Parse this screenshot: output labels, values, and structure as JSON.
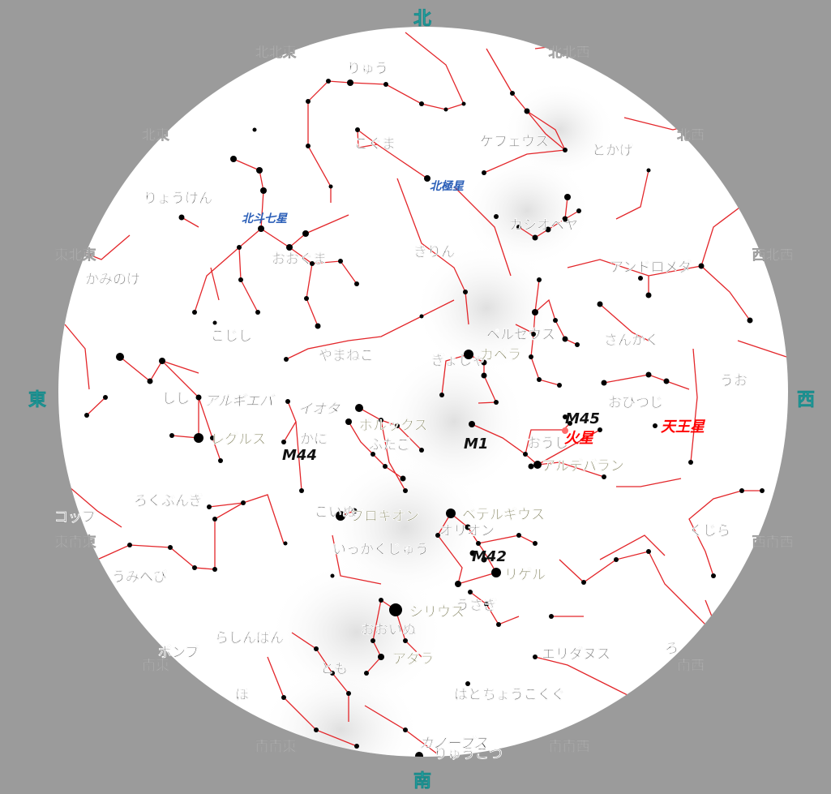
{
  "directions": {
    "main": [
      {
        "key": "north",
        "label": "北"
      },
      {
        "key": "east",
        "label": "東"
      },
      {
        "key": "west",
        "label": "西"
      },
      {
        "key": "south",
        "label": "南"
      }
    ],
    "minor": [
      {
        "key": "nne",
        "label": "北北東"
      },
      {
        "key": "nnw",
        "label": "北北西"
      },
      {
        "key": "ne",
        "label": "北東"
      },
      {
        "key": "nw",
        "label": "北西"
      },
      {
        "key": "ene",
        "label": "東北東"
      },
      {
        "key": "wnw",
        "label": "西北西"
      },
      {
        "key": "ese",
        "label": "東南東"
      },
      {
        "key": "wsw",
        "label": "西南西"
      },
      {
        "key": "se",
        "label": "南東"
      },
      {
        "key": "sw",
        "label": "南西"
      },
      {
        "key": "sse",
        "label": "南南東"
      },
      {
        "key": "ssw",
        "label": "南南西"
      }
    ]
  },
  "constellations": [
    {
      "key": "draco",
      "label": "りゅう"
    },
    {
      "key": "ursa-minor",
      "label": "こぐま"
    },
    {
      "key": "cepheus",
      "label": "ケフェウス"
    },
    {
      "key": "lacerta",
      "label": "とかげ"
    },
    {
      "key": "canes-venatici",
      "label": "りょうけん"
    },
    {
      "key": "ursa-major",
      "label": "おおぐま"
    },
    {
      "key": "camelopardalis",
      "label": "きりん"
    },
    {
      "key": "cassiopeia",
      "label": "カシオペヤ"
    },
    {
      "key": "andromeda",
      "label": "アンドロメダ"
    },
    {
      "key": "coma-berenices",
      "label": "かみのけ"
    },
    {
      "key": "leo-minor",
      "label": "こじし"
    },
    {
      "key": "lynx",
      "label": "やまねこ"
    },
    {
      "key": "auriga",
      "label": "ぎょしゃ"
    },
    {
      "key": "perseus",
      "label": "ペルセウス"
    },
    {
      "key": "triangulum",
      "label": "さんかく"
    },
    {
      "key": "pisces",
      "label": "うお"
    },
    {
      "key": "leo",
      "label": "しし"
    },
    {
      "key": "aries",
      "label": "おひつじ"
    },
    {
      "key": "cancer",
      "label": "かに"
    },
    {
      "key": "gemini",
      "label": "ふたご"
    },
    {
      "key": "taurus",
      "label": "おうし"
    },
    {
      "key": "sextans",
      "label": "ろくぶんぎ"
    },
    {
      "key": "crater",
      "label": "コップ"
    },
    {
      "key": "canis-minor",
      "label": "こいぬ"
    },
    {
      "key": "orion",
      "label": "オリオン"
    },
    {
      "key": "cetus",
      "label": "くじら"
    },
    {
      "key": "monoceros",
      "label": "いっかくじゅう"
    },
    {
      "key": "hydra",
      "label": "うみへび"
    },
    {
      "key": "lepus",
      "label": "うさぎ"
    },
    {
      "key": "pyxis",
      "label": "らしんばん"
    },
    {
      "key": "canis-major",
      "label": "おおいぬ"
    },
    {
      "key": "eridanus",
      "label": "エリダヌス"
    },
    {
      "key": "antlia",
      "label": "ポンプ"
    },
    {
      "key": "puppis",
      "label": "とも"
    },
    {
      "key": "caelum",
      "label": "ちょうこくぐ"
    },
    {
      "key": "columba",
      "label": "はと"
    },
    {
      "key": "vela",
      "label": "ほ"
    },
    {
      "key": "fornax",
      "label": "ろ"
    },
    {
      "key": "carina",
      "label": "りゅうこつ"
    }
  ],
  "stars": [
    {
      "key": "capella",
      "label": "カペラ"
    },
    {
      "key": "algieba",
      "label": "アルギエバ"
    },
    {
      "key": "iota",
      "label": "イオタ"
    },
    {
      "key": "pollux",
      "label": "ポルックス"
    },
    {
      "key": "regulus",
      "label": "レグルス"
    },
    {
      "key": "aldebaran",
      "label": "アルデバラン"
    },
    {
      "key": "procyon",
      "label": "プロキオン"
    },
    {
      "key": "betelgeuse",
      "label": "ベテルギウス"
    },
    {
      "key": "rigel",
      "label": "リゲル"
    },
    {
      "key": "sirius",
      "label": "シリウス"
    },
    {
      "key": "adhara",
      "label": "アダラ"
    },
    {
      "key": "canopus",
      "label": "カノープス"
    }
  ],
  "objects": [
    {
      "key": "m45",
      "label": "M45"
    },
    {
      "key": "m1",
      "label": "M1"
    },
    {
      "key": "m44",
      "label": "M44"
    },
    {
      "key": "m42",
      "label": "M42"
    }
  ],
  "special": [
    {
      "key": "polaris",
      "label": "北極星"
    },
    {
      "key": "big-dipper",
      "label": "北斗七星"
    }
  ],
  "planets": [
    {
      "key": "mars",
      "label": "火星"
    },
    {
      "key": "uranus",
      "label": "天王星"
    }
  ],
  "colors": {
    "background": "#9b9b9b",
    "sky": "#ffffff",
    "constellation_line": "#e3262a",
    "star": "#000000",
    "star_dot": "#0a0a5a",
    "constellation_label": "#3d3d3d",
    "star_label": "#4d4d1a",
    "direction_label": "#d5d5d5",
    "main_direction_label": "#2fd3d3",
    "special_label": "#2b5fb8",
    "planet_label": "#ff0000"
  }
}
